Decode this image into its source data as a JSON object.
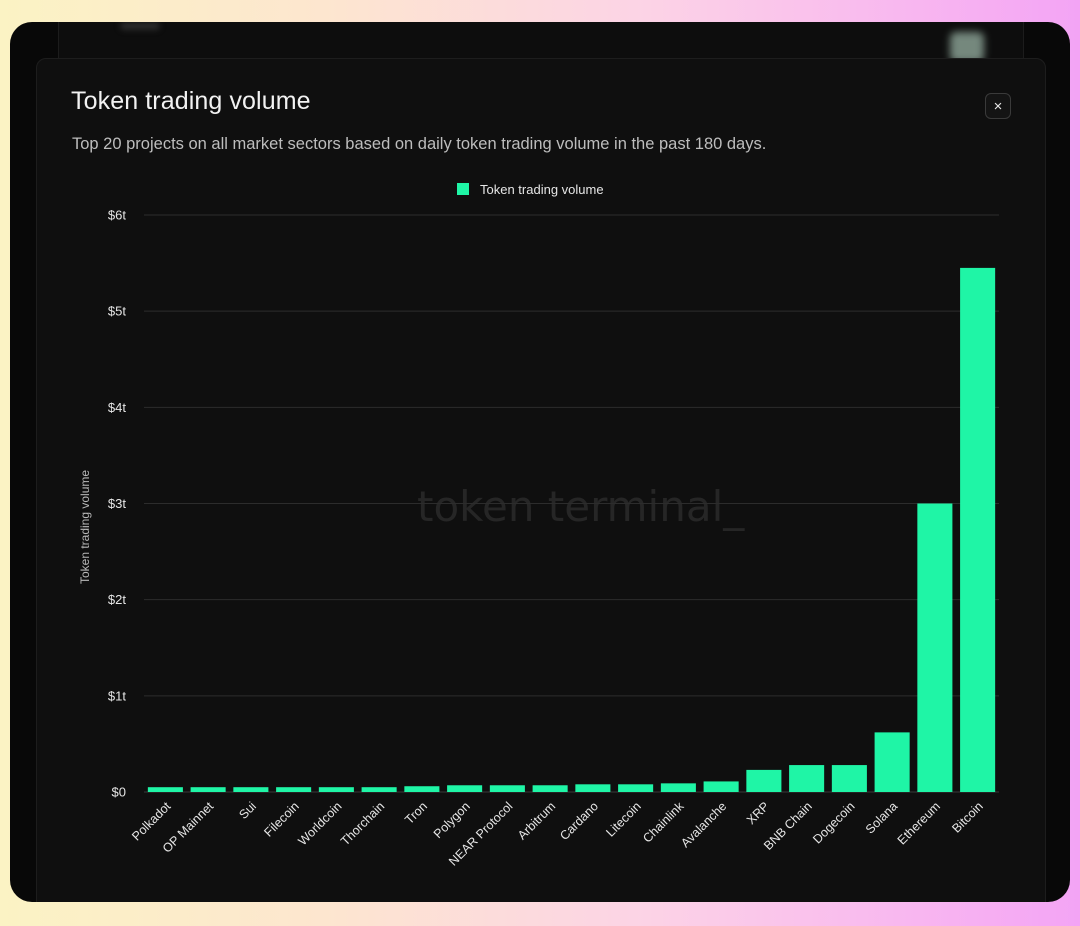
{
  "modal": {
    "title": "Token trading volume",
    "subtitle": "Top 20 projects on all market sectors based on daily token trading volume in the past 180 days.",
    "close_icon": "×"
  },
  "watermark": "token terminal_",
  "colors": {
    "bar": "#1ff5a6",
    "grid": "#2c2c2c",
    "modal_bg": "#0f0f0f"
  },
  "chart_data": {
    "type": "bar",
    "legend": [
      "Token trading volume"
    ],
    "legend_position": "top-center",
    "ylabel": "Token trading volume",
    "xlabel": "",
    "grid": true,
    "ylim": [
      0,
      6
    ],
    "y_unit": "trillion USD",
    "y_ticks": [
      0,
      1,
      2,
      3,
      4,
      5,
      6
    ],
    "y_tick_labels": [
      "$0",
      "$1t",
      "$2t",
      "$3t",
      "$4t",
      "$5t",
      "$6t"
    ],
    "categories": [
      "Polkadot",
      "OP Mainnet",
      "Sui",
      "Filecoin",
      "Worldcoin",
      "Thorchain",
      "Tron",
      "Polygon",
      "NEAR Protocol",
      "Arbitrum",
      "Cardano",
      "Litecoin",
      "Chainlink",
      "Avalanche",
      "XRP",
      "BNB Chain",
      "Dogecoin",
      "Solana",
      "Ethereum",
      "Bitcoin"
    ],
    "series": [
      {
        "name": "Token trading volume",
        "values": [
          0.05,
          0.05,
          0.05,
          0.05,
          0.05,
          0.05,
          0.06,
          0.07,
          0.07,
          0.07,
          0.08,
          0.08,
          0.09,
          0.11,
          0.23,
          0.28,
          0.28,
          0.62,
          3.0,
          5.45
        ]
      }
    ]
  }
}
